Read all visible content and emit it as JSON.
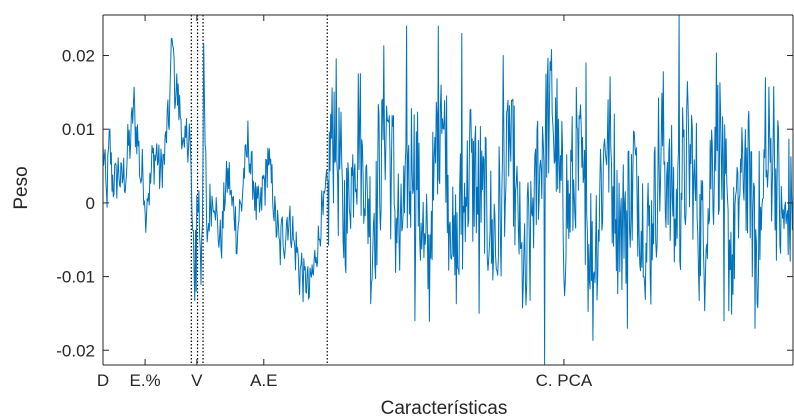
{
  "chart_data": {
    "type": "line",
    "title": "",
    "xlabel": "Características",
    "ylabel": "Peso",
    "xlim": [
      0,
      1000
    ],
    "ylim": [
      -0.022,
      0.0255
    ],
    "yticks": [
      -0.02,
      -0.01,
      0,
      0.01,
      0.02
    ],
    "ytick_labels": [
      "-0.02",
      "-0.01",
      "0",
      "0.01",
      "0.02"
    ],
    "grid": false,
    "legend": "none",
    "line_color": "#0072bd",
    "group_labels": [
      {
        "label": "D",
        "x": 0
      },
      {
        "label": "E.%",
        "x": 61
      },
      {
        "label": "V",
        "x": 136
      },
      {
        "label": "A.E",
        "x": 233
      },
      {
        "label": "C. PCA",
        "x": 668
      }
    ],
    "separators": [
      128,
      137,
      145,
      325
    ],
    "series": [
      {
        "name": "",
        "anchors": [
          [
            0,
            0.007
          ],
          [
            5,
            0.001
          ],
          [
            10,
            0.008
          ],
          [
            15,
            0.002
          ],
          [
            20,
            0.004
          ],
          [
            30,
            0.003
          ],
          [
            40,
            0.009
          ],
          [
            45,
            0.013
          ],
          [
            55,
            0.004
          ],
          [
            65,
            0.001
          ],
          [
            75,
            0.007
          ],
          [
            85,
            0.004
          ],
          [
            95,
            0.011
          ],
          [
            100,
            0.021
          ],
          [
            105,
            0.015
          ],
          [
            110,
            0.014
          ],
          [
            118,
            0.006
          ],
          [
            125,
            0.011
          ],
          [
            132,
            -0.011
          ],
          [
            138,
            0.003
          ],
          [
            142,
            -0.009
          ],
          [
            146,
            0.016
          ],
          [
            150,
            -0.004
          ],
          [
            160,
            0.002
          ],
          [
            170,
            -0.006
          ],
          [
            180,
            0.004
          ],
          [
            195,
            -0.004
          ],
          [
            210,
            0.008
          ],
          [
            225,
            -0.002
          ],
          [
            240,
            0.006
          ],
          [
            255,
            -0.006
          ],
          [
            270,
            -0.002
          ],
          [
            285,
            -0.009
          ],
          [
            300,
            -0.012
          ],
          [
            315,
            -0.003
          ],
          [
            325,
            0.001
          ],
          [
            335,
            0.012
          ],
          [
            350,
            -0.003
          ],
          [
            370,
            0.011
          ],
          [
            390,
            -0.005
          ],
          [
            410,
            0.013
          ],
          [
            430,
            -0.006
          ],
          [
            450,
            0.008
          ],
          [
            470,
            -0.01
          ],
          [
            490,
            0.016
          ],
          [
            510,
            -0.009
          ],
          [
            530,
            0.005
          ],
          [
            550,
            0.001
          ],
          [
            570,
            -0.006
          ],
          [
            590,
            0.009
          ],
          [
            610,
            -0.012
          ],
          [
            630,
            0.004
          ],
          [
            650,
            0.014
          ],
          [
            668,
            -0.003
          ],
          [
            690,
            0.006
          ],
          [
            710,
            -0.009
          ],
          [
            730,
            0.01
          ],
          [
            750,
            -0.004
          ],
          [
            770,
            0.004
          ],
          [
            790,
            -0.006
          ],
          [
            810,
            0.008
          ],
          [
            830,
            -0.002
          ],
          [
            850,
            0.007
          ],
          [
            870,
            -0.006
          ],
          [
            890,
            0.012
          ],
          [
            910,
            -0.008
          ],
          [
            930,
            0.006
          ],
          [
            950,
            -0.005
          ],
          [
            970,
            0.009
          ],
          [
            985,
            -0.004
          ],
          [
            1000,
            0.001
          ]
        ],
        "spikes": [
          [
            62,
            -0.004
          ],
          [
            102,
            0.021
          ],
          [
            135,
            -0.012
          ],
          [
            440,
            0.024
          ],
          [
            452,
            -0.016
          ],
          [
            486,
            0.024
          ],
          [
            520,
            0.023
          ],
          [
            545,
            -0.015
          ],
          [
            580,
            0.02
          ],
          [
            640,
            -0.022
          ],
          [
            700,
            0.019
          ],
          [
            760,
            -0.017
          ],
          [
            835,
            0.0255
          ],
          [
            900,
            -0.016
          ],
          [
            945,
            -0.017
          ],
          [
            960,
            0.017
          ]
        ]
      }
    ]
  }
}
